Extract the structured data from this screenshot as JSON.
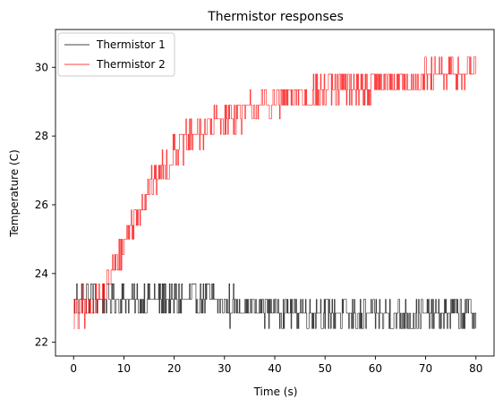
{
  "chart_data": {
    "type": "line",
    "title": "Thermistor responses",
    "xlabel": "Time (s)",
    "ylabel": "Temperature (C)",
    "xlim": [
      -3.6,
      83.6
    ],
    "ylim": [
      21.6,
      31.1
    ],
    "xticks": [
      0,
      10,
      20,
      30,
      40,
      50,
      60,
      70,
      80
    ],
    "yticks": [
      22,
      24,
      26,
      28,
      30
    ],
    "grid": false,
    "legend": "top-left",
    "series": [
      {
        "name": "Thermistor 1",
        "color": "#000000",
        "levels": [
          22.4,
          22.85,
          23.25,
          23.7
        ],
        "baseline": [
          [
            0,
            23.25
          ],
          [
            28,
            23.25
          ],
          [
            34,
            23.05
          ],
          [
            45,
            22.95
          ],
          [
            55,
            22.8
          ],
          [
            65,
            22.8
          ],
          [
            80,
            22.85
          ]
        ],
        "noise": 0.42,
        "spikes": [
          [
            3.5,
            24.1
          ],
          [
            16,
            24.0
          ],
          [
            31,
            21.95
          ],
          [
            53,
            21.95
          ],
          [
            57,
            21.95
          ],
          [
            65,
            21.95
          ]
        ],
        "x_start": 0,
        "x_end": 80,
        "n_points": 560
      },
      {
        "name": "Thermistor 2",
        "color": "#ff0000",
        "levels": [
          22.4,
          22.85,
          23.25,
          23.7,
          24.1,
          24.55,
          25.0,
          25.4,
          25.85,
          26.3,
          26.75,
          27.15,
          27.6,
          28.05,
          28.5,
          28.9,
          29.35,
          29.8,
          30.3
        ],
        "baseline": [
          [
            0,
            22.8
          ],
          [
            3,
            22.9
          ],
          [
            6,
            23.4
          ],
          [
            8,
            24.2
          ],
          [
            10,
            24.9
          ],
          [
            12,
            25.6
          ],
          [
            14,
            26.2
          ],
          [
            16,
            26.7
          ],
          [
            18,
            27.1
          ],
          [
            20,
            27.5
          ],
          [
            22,
            27.8
          ],
          [
            25,
            28.1
          ],
          [
            28,
            28.4
          ],
          [
            32,
            28.6
          ],
          [
            36,
            28.8
          ],
          [
            40,
            29.0
          ],
          [
            45,
            29.2
          ],
          [
            50,
            29.3
          ],
          [
            55,
            29.4
          ],
          [
            60,
            29.5
          ],
          [
            65,
            29.6
          ],
          [
            70,
            29.7
          ],
          [
            75,
            29.8
          ],
          [
            79.5,
            29.9
          ]
        ],
        "noise": 0.45,
        "spikes": [
          [
            0.8,
            21.95
          ],
          [
            1.8,
            23.7
          ],
          [
            20,
            28.0
          ],
          [
            23,
            28.7
          ],
          [
            79.8,
            30.8
          ]
        ],
        "x_start": 0,
        "x_end": 80,
        "n_points": 560
      }
    ]
  }
}
